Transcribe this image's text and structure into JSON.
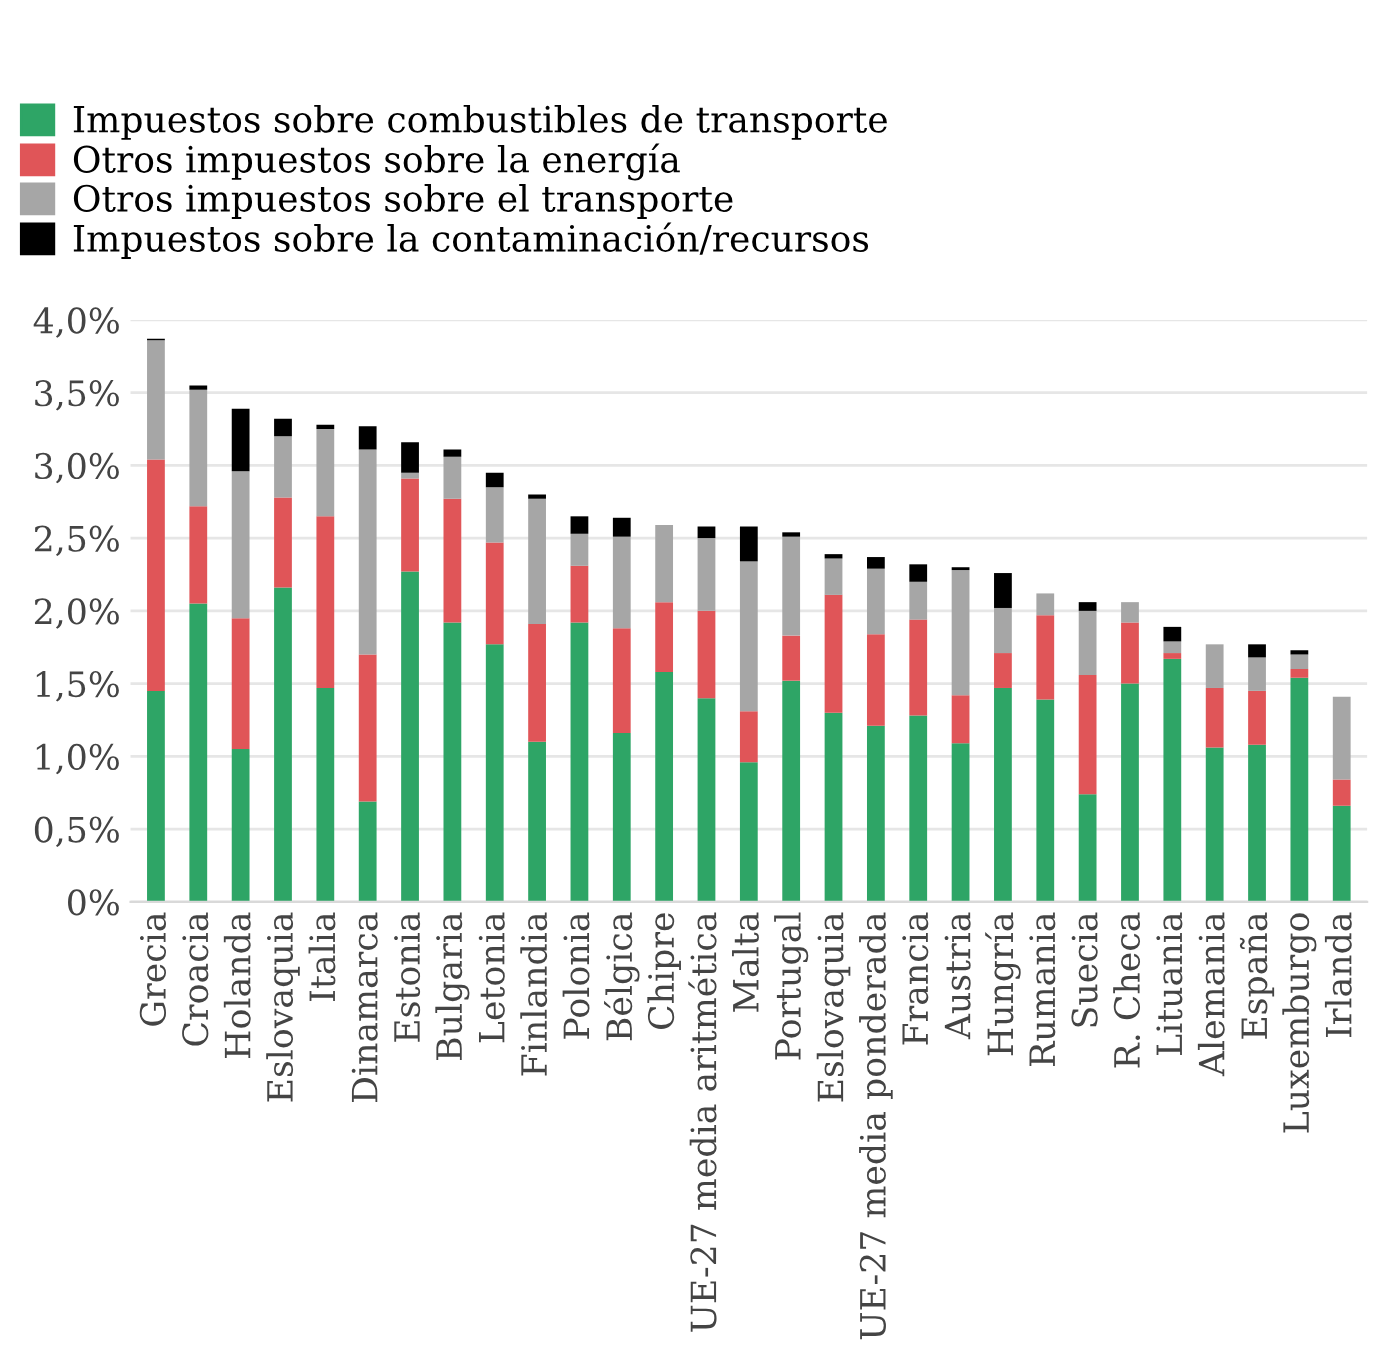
{
  "chart_data": {
    "type": "bar",
    "stacked": true,
    "categories": [
      "Grecia",
      "Croacia",
      "Holanda",
      "Eslovaquia",
      "Italia",
      "Dinamarca",
      "Estonia",
      "Bulgaria",
      "Letonia",
      "Finlandia",
      "Polonia",
      "Bélgica",
      "Chipre",
      "UE-27 media aritmética",
      "Malta",
      "Portugal",
      "Eslovaquia",
      "UE-27 media ponderada",
      "Francia",
      "Austria",
      "Hungría",
      "Rumania",
      "Suecia",
      "R. Checa",
      "Lituania",
      "Alemania",
      "España",
      "Luxemburgo",
      "Irlanda"
    ],
    "series": [
      {
        "name": "Impuestos sobre combustibles de transporte",
        "color": "#2ea566",
        "values": [
          1.45,
          2.05,
          1.05,
          2.16,
          1.47,
          0.69,
          2.27,
          1.92,
          1.77,
          1.1,
          1.92,
          1.16,
          1.58,
          1.4,
          0.96,
          1.52,
          1.3,
          1.21,
          1.28,
          1.09,
          1.47,
          1.39,
          0.74,
          1.5,
          1.67,
          1.06,
          1.08,
          1.54,
          0.66
        ]
      },
      {
        "name": "Otros impuestos sobre la energía",
        "color": "#e05558",
        "values": [
          1.59,
          0.67,
          0.9,
          0.62,
          1.18,
          1.01,
          0.64,
          0.85,
          0.7,
          0.81,
          0.39,
          0.72,
          0.48,
          0.6,
          0.35,
          0.31,
          0.81,
          0.63,
          0.66,
          0.33,
          0.24,
          0.58,
          0.82,
          0.42,
          0.04,
          0.41,
          0.37,
          0.06,
          0.18
        ]
      },
      {
        "name": "Otros impuestos sobre el transporte",
        "color": "#a6a6a6",
        "values": [
          0.82,
          0.8,
          1.01,
          0.42,
          0.6,
          1.41,
          0.04,
          0.29,
          0.38,
          0.86,
          0.22,
          0.63,
          0.53,
          0.5,
          1.03,
          0.68,
          0.25,
          0.45,
          0.26,
          0.86,
          0.31,
          0.15,
          0.44,
          0.14,
          0.08,
          0.3,
          0.23,
          0.1,
          0.57
        ]
      },
      {
        "name": "Impuestos sobre la contaminación/recursos",
        "color": "#000000",
        "values": [
          0.01,
          0.03,
          0.43,
          0.12,
          0.03,
          0.16,
          0.21,
          0.05,
          0.1,
          0.03,
          0.12,
          0.13,
          0,
          0.08,
          0.24,
          0.03,
          0.03,
          0.08,
          0.12,
          0.02,
          0.24,
          0,
          0.06,
          0,
          0.1,
          0,
          0.09,
          0.03,
          0
        ]
      }
    ],
    "ylim": [
      0,
      4.0
    ],
    "yticks": [
      {
        "value": 0,
        "label": "0%"
      },
      {
        "value": 0.5,
        "label": "0,5%"
      },
      {
        "value": 1.0,
        "label": "1,0%"
      },
      {
        "value": 1.5,
        "label": "1,5%"
      },
      {
        "value": 2.0,
        "label": "2,0%"
      },
      {
        "value": 2.5,
        "label": "2,5%"
      },
      {
        "value": 3.0,
        "label": "3,0%"
      },
      {
        "value": 3.5,
        "label": "3,5%"
      },
      {
        "value": 4.0,
        "label": "4,0%"
      }
    ],
    "grid": "y",
    "legend": "top left"
  }
}
